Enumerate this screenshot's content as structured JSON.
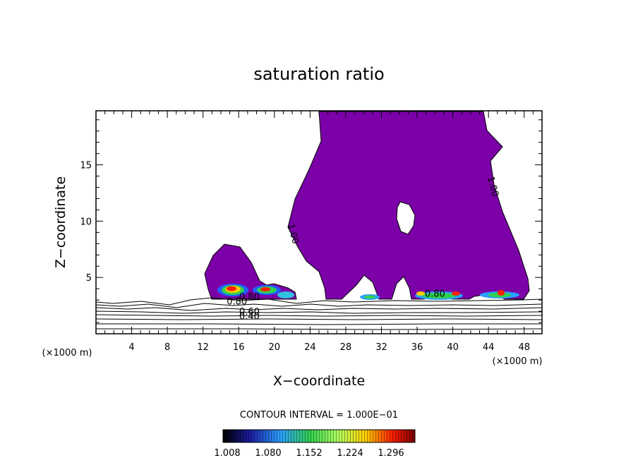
{
  "chart_data": {
    "type": "heatmap",
    "title": "saturation ratio",
    "xlabel": "X−coordinate",
    "ylabel": "Z−coordinate",
    "x_unit": "(×1000 m)",
    "z_unit": "(×1000 m)",
    "xlim": [
      0,
      50
    ],
    "ylim": [
      0,
      19.8
    ],
    "x_ticks": [
      4,
      8,
      12,
      16,
      20,
      24,
      28,
      32,
      36,
      40,
      44,
      48
    ],
    "y_ticks": [
      5,
      10,
      15
    ],
    "contour_interval_text": "CONTOUR INTERVAL = 1.000E−01",
    "colorbar": {
      "labels": [
        "1.008",
        "1.080",
        "1.152",
        "1.224",
        "1.296"
      ],
      "colors": [
        "#000000",
        "#1a1aa0",
        "#2aa0ff",
        "#30d050",
        "#b0ff60",
        "#ffd000",
        "#ff2000",
        "#7a0000"
      ]
    },
    "saturated_color": "#7b00a8",
    "contour_labels": [
      {
        "text": "1.00",
        "x": 21.8,
        "y": 8.8
      },
      {
        "text": "1.00",
        "x": 44.2,
        "y": 13.0
      },
      {
        "text": "0.60",
        "x": 17.2,
        "y": 1.7
      },
      {
        "text": "0.40",
        "x": 17.2,
        "y": 1.3
      },
      {
        "text": "0.80",
        "x": 15.8,
        "y": 2.6
      },
      {
        "text": "0.80",
        "x": 17.2,
        "y": 3.0
      },
      {
        "text": "0.80",
        "x": 38.0,
        "y": 3.3
      }
    ]
  }
}
